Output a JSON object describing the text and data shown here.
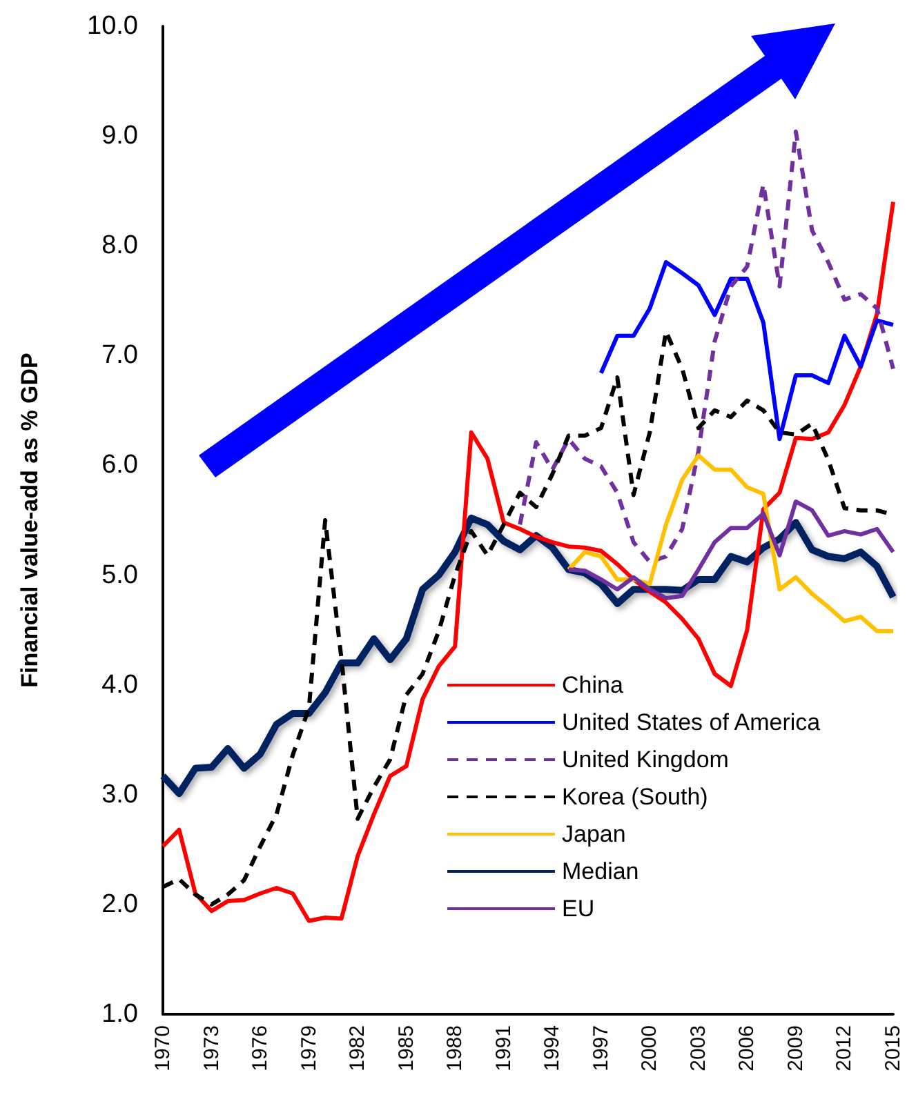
{
  "chart_data": {
    "type": "line",
    "ylabel": "Financial value-add as % GDP",
    "xlim": [
      1970,
      2015
    ],
    "xticks": [
      1970,
      1973,
      1976,
      1979,
      1982,
      1985,
      1988,
      1991,
      1994,
      1997,
      2000,
      2003,
      2006,
      2009,
      2012,
      2015
    ],
    "ylim": [
      1,
      10
    ],
    "yticks": [
      {
        "value": 1,
        "label": "1.0"
      },
      {
        "value": 2,
        "label": "2.0"
      },
      {
        "value": 3,
        "label": "3.0"
      },
      {
        "value": 4,
        "label": "4.0"
      },
      {
        "value": 5,
        "label": "5.0"
      },
      {
        "value": 6,
        "label": "6.0"
      },
      {
        "value": 7,
        "label": "7.0"
      },
      {
        "value": 8,
        "label": "8.0"
      },
      {
        "value": 9,
        "label": "9.0"
      },
      {
        "value": 10,
        "label": "10.0"
      }
    ],
    "grid": false,
    "legend": "bottom",
    "marker": "none",
    "series": [
      {
        "name": "China",
        "color": "#ff0000",
        "line_style": "solid",
        "x": [
          1970,
          1971,
          1972,
          1973,
          1974,
          1975,
          1976,
          1977,
          1978,
          1979,
          1980,
          1981,
          1982,
          1983,
          1984,
          1985,
          1986,
          1987,
          1988,
          1989,
          1990,
          1991,
          1992,
          1993,
          1994,
          1995,
          1996,
          1997,
          1998,
          1999,
          2000,
          2001,
          2002,
          2003,
          2004,
          2005,
          2006,
          2007,
          2008,
          2009,
          2010,
          2011,
          2012,
          2013,
          2014,
          2015
        ],
        "values": [
          2.53,
          2.68,
          2.1,
          1.94,
          2.03,
          2.04,
          2.1,
          2.15,
          2.1,
          1.85,
          1.88,
          1.87,
          2.44,
          2.82,
          3.17,
          3.26,
          3.87,
          4.17,
          4.35,
          6.3,
          6.06,
          5.48,
          5.42,
          5.35,
          5.3,
          5.26,
          5.25,
          5.22,
          5.1,
          4.96,
          4.85,
          4.75,
          4.6,
          4.42,
          4.1,
          3.99,
          4.5,
          5.6,
          5.75,
          6.25,
          6.24,
          6.3,
          6.55,
          6.9,
          7.38,
          8.4
        ]
      },
      {
        "name": "United States of America",
        "color": "#0000ff",
        "line_style": "solid",
        "x": [
          1997,
          1998,
          1999,
          2000,
          2001,
          2002,
          2003,
          2004,
          2005,
          2006,
          2007,
          2008,
          2009,
          2010,
          2011,
          2012,
          2013,
          2014,
          2015
        ],
        "values": [
          6.84,
          7.18,
          7.18,
          7.43,
          7.85,
          7.75,
          7.64,
          7.37,
          7.7,
          7.7,
          7.3,
          6.24,
          6.82,
          6.82,
          6.75,
          7.18,
          6.9,
          7.32,
          7.28
        ]
      },
      {
        "name": "United Kingdom",
        "color": "#7030a0",
        "line_style": "dashed",
        "x": [
          1992,
          1993,
          1994,
          1995,
          1996,
          1997,
          1998,
          1999,
          2000,
          2001,
          2002,
          2003,
          2004,
          2005,
          2006,
          2007,
          2008,
          2009,
          2010,
          2011,
          2012,
          2013,
          2014,
          2015
        ],
        "values": [
          5.46,
          6.21,
          5.96,
          6.24,
          6.06,
          5.99,
          5.75,
          5.3,
          5.12,
          5.17,
          5.42,
          6.13,
          7.13,
          7.63,
          7.81,
          8.56,
          7.63,
          9.04,
          8.14,
          7.85,
          7.51,
          7.56,
          7.43,
          6.88
        ]
      },
      {
        "name": "Korea (South)",
        "color": "#000000",
        "line_style": "dashed",
        "x": [
          1970,
          1971,
          1972,
          1973,
          1974,
          1975,
          1976,
          1977,
          1978,
          1979,
          1980,
          1981,
          1982,
          1983,
          1984,
          1985,
          1986,
          1987,
          1988,
          1989,
          1990,
          1991,
          1992,
          1993,
          1994,
          1995,
          1996,
          1997,
          1998,
          1999,
          2000,
          2001,
          2002,
          2003,
          2004,
          2005,
          2006,
          2007,
          2008,
          2009,
          2010,
          2011,
          2012,
          2013,
          2014,
          2015
        ],
        "values": [
          2.16,
          2.23,
          2.09,
          2.0,
          2.09,
          2.22,
          2.53,
          2.82,
          3.36,
          3.79,
          5.5,
          4.24,
          2.78,
          3.07,
          3.32,
          3.91,
          4.1,
          4.49,
          5.0,
          5.4,
          5.18,
          5.46,
          5.75,
          5.62,
          5.92,
          6.27,
          6.27,
          6.34,
          6.8,
          5.73,
          6.3,
          7.22,
          6.88,
          6.34,
          6.5,
          6.44,
          6.59,
          6.5,
          6.3,
          6.28,
          6.38,
          6.05,
          5.61,
          5.59,
          5.59,
          5.55
        ]
      },
      {
        "name": "Japan",
        "color": "#ffc000",
        "line_style": "solid",
        "x": [
          1995,
          1996,
          1997,
          1998,
          1999,
          2000,
          2001,
          2002,
          2003,
          2004,
          2005,
          2006,
          2007,
          2008,
          2009,
          2010,
          2011,
          2012,
          2013,
          2014,
          2015
        ],
        "values": [
          5.05,
          5.21,
          5.17,
          4.96,
          4.96,
          4.92,
          5.46,
          5.87,
          6.09,
          5.96,
          5.96,
          5.8,
          5.74,
          4.87,
          4.98,
          4.83,
          4.71,
          4.58,
          4.62,
          4.49,
          4.49
        ]
      },
      {
        "name": "Median",
        "color": "#002060",
        "line_style": "solid",
        "x": [
          1970,
          1971,
          1972,
          1973,
          1974,
          1975,
          1976,
          1977,
          1978,
          1979,
          1980,
          1981,
          1982,
          1983,
          1984,
          1985,
          1986,
          1987,
          1988,
          1989,
          1990,
          1991,
          1992,
          1993,
          1994,
          1995,
          1996,
          1997,
          1998,
          1999,
          2000,
          2001,
          2002,
          2003,
          2004,
          2005,
          2006,
          2007,
          2008,
          2009,
          2010,
          2011,
          2012,
          2013,
          2014,
          2015
        ],
        "values": [
          3.17,
          3.01,
          3.24,
          3.25,
          3.42,
          3.24,
          3.37,
          3.64,
          3.74,
          3.74,
          3.93,
          4.2,
          4.2,
          4.42,
          4.23,
          4.42,
          4.87,
          5.0,
          5.21,
          5.52,
          5.46,
          5.31,
          5.23,
          5.36,
          5.25,
          5.05,
          5.02,
          4.92,
          4.74,
          4.87,
          4.87,
          4.87,
          4.86,
          4.96,
          4.96,
          5.17,
          5.12,
          5.25,
          5.33,
          5.48,
          5.23,
          5.17,
          5.15,
          5.21,
          5.08,
          4.8
        ]
      },
      {
        "name": "EU",
        "color": "#7030a0",
        "line_style": "solid",
        "x": [
          1995,
          1996,
          1997,
          1998,
          1999,
          2000,
          2001,
          2002,
          2003,
          2004,
          2005,
          2006,
          2007,
          2008,
          2009,
          2010,
          2011,
          2012,
          2013,
          2014,
          2015
        ],
        "values": [
          5.05,
          5.04,
          4.96,
          4.87,
          4.98,
          4.87,
          4.79,
          4.81,
          5.05,
          5.3,
          5.43,
          5.43,
          5.56,
          5.18,
          5.67,
          5.59,
          5.36,
          5.4,
          5.37,
          5.42,
          5.21
        ]
      }
    ]
  }
}
